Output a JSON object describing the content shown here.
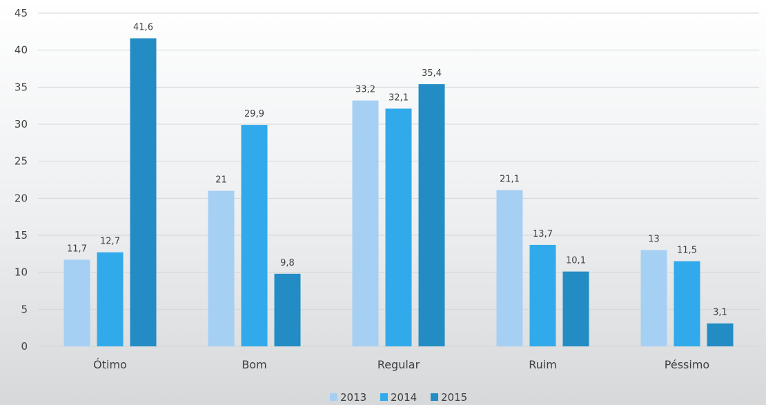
{
  "chart_data": {
    "type": "bar",
    "categories": [
      "Ótimo",
      "Bom",
      "Regular",
      "Ruim",
      "Péssimo"
    ],
    "series": [
      {
        "name": "2013",
        "color": "#a6cff4",
        "values": [
          11.7,
          21,
          33.2,
          21.1,
          13
        ]
      },
      {
        "name": "2014",
        "color": "#30aaea",
        "values": [
          12.7,
          29.9,
          32.1,
          13.7,
          11.5
        ]
      },
      {
        "name": "2015",
        "color": "#238cc4",
        "values": [
          41.6,
          9.8,
          35.4,
          10.1,
          3.1
        ]
      }
    ],
    "value_labels": [
      [
        "11,7",
        "21",
        "33,2",
        "21,1",
        "13"
      ],
      [
        "12,7",
        "29,9",
        "32,1",
        "13,7",
        "11,5"
      ],
      [
        "41,6",
        "9,8",
        "35,4",
        "10,1",
        "3,1"
      ]
    ],
    "y_ticks": [
      "0",
      "5",
      "10",
      "15",
      "20",
      "25",
      "30",
      "35",
      "40",
      "45"
    ],
    "ylim": [
      0,
      45
    ],
    "grid": true,
    "legend": "bottom",
    "title": "",
    "xlabel": "",
    "ylabel": ""
  }
}
